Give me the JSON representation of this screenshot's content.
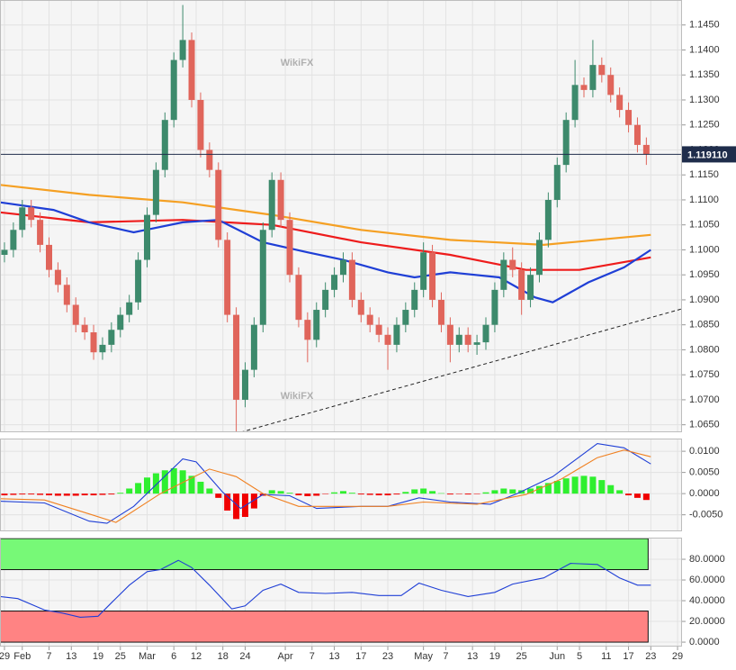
{
  "chart_data": [
    {
      "type": "candlestick",
      "watermark": "WikiFX",
      "xlim": [
        -1,
        152
      ],
      "ylim": [
        1.0635,
        1.15
      ],
      "yticks": [
        {
          "value": 1.065,
          "label": "1.0650"
        },
        {
          "value": 1.07,
          "label": "1.0700"
        },
        {
          "value": 1.075,
          "label": "1.0750"
        },
        {
          "value": 1.08,
          "label": "1.0800"
        },
        {
          "value": 1.085,
          "label": "1.0850"
        },
        {
          "value": 1.09,
          "label": "1.0900"
        },
        {
          "value": 1.095,
          "label": "1.0950"
        },
        {
          "value": 1.1,
          "label": "1.1000"
        },
        {
          "value": 1.105,
          "label": "1.1050"
        },
        {
          "value": 1.11,
          "label": "1.1100"
        },
        {
          "value": 1.115,
          "label": "1.1150"
        },
        {
          "value": 1.12,
          "label": "1.1200"
        },
        {
          "value": 1.125,
          "label": "1.1250"
        },
        {
          "value": 1.13,
          "label": "1.1300"
        },
        {
          "value": 1.135,
          "label": "1.1350"
        },
        {
          "value": 1.14,
          "label": "1.1400"
        },
        {
          "value": 1.145,
          "label": "1.1450"
        }
      ],
      "grid": true,
      "up_color": "#3d8a6c",
      "down_color": "#e0655b",
      "x": [
        0,
        2,
        4,
        6,
        8,
        10,
        12,
        14,
        16,
        18,
        20,
        22,
        24,
        26,
        28,
        30,
        32,
        34,
        36,
        38,
        40,
        42,
        44,
        46,
        48,
        50,
        52,
        54,
        56,
        58,
        60,
        62,
        64,
        66,
        68,
        70,
        72,
        74,
        76,
        78,
        80,
        82,
        84,
        86,
        88,
        90,
        92,
        94,
        96,
        98,
        100,
        102,
        104,
        106,
        108,
        110,
        112,
        114,
        116,
        118,
        120,
        122,
        124,
        126,
        128,
        130,
        132,
        134,
        136,
        138,
        140,
        142,
        144
      ],
      "open": [
        1.099,
        1.1,
        1.104,
        1.1085,
        1.106,
        1.101,
        1.096,
        1.093,
        1.089,
        1.085,
        1.0835,
        1.0795,
        1.081,
        1.084,
        1.087,
        1.0895,
        1.098,
        1.107,
        1.116,
        1.126,
        1.138,
        1.142,
        1.13,
        1.12,
        1.116,
        1.102,
        1.087,
        1.07,
        1.076,
        1.085,
        1.104,
        1.114,
        1.106,
        1.095,
        1.086,
        1.082,
        1.088,
        1.092,
        1.095,
        1.098,
        1.09,
        1.087,
        1.085,
        1.083,
        1.081,
        1.085,
        1.088,
        1.092,
        1.0995,
        1.09,
        1.085,
        1.081,
        1.083,
        1.081,
        1.0815,
        1.085,
        1.092,
        1.098,
        1.096,
        1.09,
        1.095,
        1.102,
        1.11,
        1.117,
        1.126,
        1.133,
        1.132,
        1.137,
        1.135,
        1.131,
        1.128,
        1.125,
        1.121
      ],
      "high": [
        1.1015,
        1.1055,
        1.11,
        1.11,
        1.1075,
        1.1025,
        1.0975,
        1.0945,
        1.0905,
        1.0865,
        1.085,
        1.0825,
        1.0855,
        1.0885,
        1.091,
        1.0995,
        1.1085,
        1.1175,
        1.1275,
        1.1395,
        1.149,
        1.1435,
        1.1315,
        1.1215,
        1.1175,
        1.1035,
        1.0885,
        1.0775,
        1.0865,
        1.1055,
        1.1155,
        1.1155,
        1.1075,
        1.0965,
        1.0875,
        1.0895,
        1.0935,
        1.0965,
        1.0995,
        1.0995,
        1.0915,
        1.0885,
        1.0865,
        1.0845,
        1.0865,
        1.0895,
        1.0935,
        1.1015,
        1.101,
        1.0915,
        1.0865,
        1.0845,
        1.0845,
        1.083,
        1.0865,
        1.0935,
        1.0995,
        1.1005,
        1.0975,
        1.0965,
        1.1035,
        1.1115,
        1.1185,
        1.1275,
        1.138,
        1.1345,
        1.142,
        1.1385,
        1.1365,
        1.1325,
        1.1295,
        1.1265,
        1.1225
      ],
      "low": [
        1.0975,
        1.0985,
        1.1025,
        1.1045,
        1.0995,
        1.0945,
        1.0915,
        1.0875,
        1.0835,
        1.082,
        1.078,
        1.078,
        1.0795,
        1.0825,
        1.0855,
        1.088,
        1.0965,
        1.1055,
        1.1145,
        1.1245,
        1.1365,
        1.1285,
        1.1185,
        1.1145,
        1.1005,
        1.0855,
        1.0635,
        1.0685,
        1.0745,
        1.0835,
        1.1025,
        1.1045,
        1.0935,
        1.0845,
        1.0775,
        1.0805,
        1.0865,
        1.0905,
        1.0935,
        1.0885,
        1.0855,
        1.0835,
        1.0815,
        1.076,
        1.0795,
        1.0835,
        1.0865,
        1.0905,
        1.0885,
        1.0835,
        1.0775,
        1.0795,
        1.0795,
        1.079,
        1.08,
        1.0835,
        1.0905,
        1.0945,
        1.087,
        1.0885,
        1.0935,
        1.1005,
        1.1085,
        1.1155,
        1.1245,
        1.1305,
        1.1305,
        1.1335,
        1.1295,
        1.1265,
        1.1235,
        1.1195,
        1.117
      ],
      "close": [
        1.1,
        1.104,
        1.1085,
        1.106,
        1.101,
        1.096,
        1.093,
        1.089,
        1.085,
        1.0835,
        1.0795,
        1.081,
        1.084,
        1.087,
        1.0895,
        1.098,
        1.107,
        1.116,
        1.126,
        1.138,
        1.142,
        1.13,
        1.12,
        1.116,
        1.102,
        1.087,
        1.07,
        1.076,
        1.085,
        1.104,
        1.114,
        1.106,
        1.095,
        1.086,
        1.082,
        1.088,
        1.092,
        1.095,
        1.098,
        1.09,
        1.087,
        1.085,
        1.083,
        1.081,
        1.085,
        1.088,
        1.092,
        1.0995,
        1.09,
        1.085,
        1.081,
        1.083,
        1.081,
        1.0815,
        1.085,
        1.092,
        1.098,
        1.096,
        1.09,
        1.095,
        1.102,
        1.11,
        1.117,
        1.126,
        1.133,
        1.132,
        1.137,
        1.135,
        1.131,
        1.128,
        1.125,
        1.121,
        1.1191
      ],
      "lines": [
        {
          "color": "#f5a023",
          "x": [
            -1,
            19,
            40,
            60,
            80,
            100,
            121,
            145
          ],
          "values": [
            1.113,
            1.111,
            1.1095,
            1.107,
            1.104,
            1.102,
            1.101,
            1.103
          ]
        },
        {
          "color": "#ee1c1c",
          "x": [
            -1,
            19,
            40,
            60,
            80,
            100,
            117,
            129,
            145
          ],
          "values": [
            1.1075,
            1.1055,
            1.106,
            1.105,
            1.1015,
            1.099,
            1.096,
            1.096,
            1.0985
          ]
        },
        {
          "color": "#1f3fd6",
          "x": [
            -1,
            11,
            19,
            29,
            40,
            48,
            58,
            68,
            76,
            86,
            92,
            100,
            111,
            119,
            123,
            131,
            139,
            145
          ],
          "values": [
            1.1095,
            1.108,
            1.1055,
            1.1035,
            1.1055,
            1.106,
            1.1015,
            1.0995,
            1.098,
            1.0955,
            1.0945,
            1.0955,
            1.0945,
            1.0905,
            1.0895,
            1.0935,
            1.0965,
            1.1
          ]
        }
      ],
      "trendline": {
        "x": [
          53,
          152
        ],
        "y": [
          1.0635,
          1.0882
        ]
      },
      "last_price": {
        "value": 1.11911,
        "label": "1.119110"
      }
    },
    {
      "type": "macd",
      "xlim": [
        -1,
        152
      ],
      "ylim": [
        -0.0089,
        0.013
      ],
      "yticks": [
        {
          "value": -0.005,
          "label": "-0.0050"
        },
        {
          "value": 0,
          "label": "0.0000"
        },
        {
          "value": 0.005,
          "label": "0.0050"
        },
        {
          "value": 0.01,
          "label": "0.0100"
        }
      ],
      "histogram": {
        "pos_color": "#2fef2f",
        "neg_color": "#f00000",
        "x": [
          0,
          2,
          4,
          6,
          8,
          10,
          12,
          14,
          16,
          18,
          20,
          22,
          24,
          26,
          28,
          30,
          32,
          34,
          36,
          38,
          40,
          42,
          44,
          46,
          48,
          50,
          52,
          54,
          56,
          58,
          60,
          62,
          64,
          66,
          68,
          70,
          72,
          74,
          76,
          78,
          80,
          82,
          84,
          86,
          88,
          90,
          92,
          94,
          96,
          98,
          100,
          102,
          104,
          106,
          108,
          110,
          112,
          114,
          116,
          118,
          120,
          122,
          124,
          126,
          128,
          130,
          132,
          134,
          136,
          138,
          140,
          142,
          144
        ],
        "values": [
          -0.0004,
          -0.0003,
          -0.0002,
          -0.0002,
          -0.0003,
          -0.0004,
          -0.0005,
          -0.0005,
          -0.0005,
          -0.0004,
          -0.0004,
          -0.0003,
          -0.0002,
          0.0002,
          0.0012,
          0.0025,
          0.0038,
          0.0048,
          0.0055,
          0.006,
          0.0055,
          0.0042,
          0.0028,
          0.0012,
          -0.001,
          -0.004,
          -0.006,
          -0.0055,
          -0.0035,
          -0.0005,
          0.0008,
          0.0006,
          0.0002,
          -0.0004,
          -0.0006,
          -0.0005,
          -0.0001,
          0.0003,
          0.0006,
          0.0002,
          -0.0002,
          -0.0003,
          -0.0004,
          -0.0004,
          -0.0002,
          0.0004,
          0.001,
          0.0012,
          0.0006,
          0.0001,
          -0.0002,
          -0.0001,
          -0.0002,
          -0.0001,
          0.0003,
          0.0008,
          0.0012,
          0.001,
          0.0008,
          0.0012,
          0.0018,
          0.0025,
          0.003,
          0.0036,
          0.004,
          0.0042,
          0.004,
          0.0032,
          0.002,
          0.0008,
          -0.0004,
          -0.001,
          -0.0015
        ]
      },
      "lines": [
        {
          "color": "#1f3fd6",
          "x": [
            -1,
            9,
            19,
            23,
            29,
            40,
            43,
            49,
            53,
            58,
            64,
            70,
            80,
            86,
            93,
            100,
            109,
            115,
            123,
            133,
            139,
            145
          ],
          "values": [
            -0.0018,
            -0.0022,
            -0.0065,
            -0.007,
            -0.003,
            0.0082,
            0.0075,
            0.0003,
            -0.0035,
            -0.0002,
            -0.0005,
            -0.0035,
            -0.003,
            -0.003,
            -0.001,
            -0.002,
            -0.0025,
            0,
            0.004,
            0.0118,
            0.0108,
            0.007
          ]
        },
        {
          "color": "#f08020",
          "x": [
            -1,
            9,
            19,
            25,
            35,
            46,
            52,
            58,
            66,
            76,
            86,
            94,
            106,
            117,
            125,
            133,
            139,
            145
          ],
          "values": [
            -0.0012,
            -0.0015,
            -0.0048,
            -0.0068,
            0,
            0.0058,
            0.004,
            0,
            -0.003,
            -0.003,
            -0.003,
            -0.002,
            -0.0025,
            -0.0002,
            0.0035,
            0.0085,
            0.0103,
            0.0087
          ]
        }
      ]
    },
    {
      "type": "rsi",
      "xlim": [
        -1,
        152
      ],
      "ylim": [
        -4.3,
        100.9
      ],
      "yticks": [
        {
          "value": 0,
          "label": "0.0000"
        },
        {
          "value": 20,
          "label": "20.0000"
        },
        {
          "value": 40,
          "label": "40.0000"
        },
        {
          "value": 60,
          "label": "60.0000"
        },
        {
          "value": 80,
          "label": "80.0000"
        }
      ],
      "xticks": [
        {
          "value": 0,
          "label": "29"
        },
        {
          "value": 4,
          "label": "Feb"
        },
        {
          "value": 10,
          "label": "7"
        },
        {
          "value": 15,
          "label": "13"
        },
        {
          "value": 21,
          "label": "19"
        },
        {
          "value": 26,
          "label": "25"
        },
        {
          "value": 32,
          "label": "Mar"
        },
        {
          "value": 38,
          "label": "6"
        },
        {
          "value": 43,
          "label": "12"
        },
        {
          "value": 49,
          "label": "18"
        },
        {
          "value": 54,
          "label": "24"
        },
        {
          "value": 63,
          "label": "Apr"
        },
        {
          "value": 69,
          "label": "7"
        },
        {
          "value": 74,
          "label": "13"
        },
        {
          "value": 80,
          "label": "17"
        },
        {
          "value": 86,
          "label": "23"
        },
        {
          "value": 94,
          "label": "May"
        },
        {
          "value": 99,
          "label": "7"
        },
        {
          "value": 105,
          "label": "13"
        },
        {
          "value": 110,
          "label": "19"
        },
        {
          "value": 116,
          "label": "25"
        },
        {
          "value": 124,
          "label": "Jun"
        },
        {
          "value": 129,
          "label": "5"
        },
        {
          "value": 135,
          "label": "11"
        },
        {
          "value": 140,
          "label": "17"
        },
        {
          "value": 145,
          "label": "23"
        },
        {
          "value": 151,
          "label": "29"
        }
      ],
      "bands": [
        {
          "from": 70,
          "to": 100,
          "color": "#77f977"
        },
        {
          "from": 0,
          "to": 30,
          "color": "#ff8383"
        }
      ],
      "lines": [
        {
          "color": "#1f3fd6",
          "x": [
            -1,
            3,
            9,
            13,
            17,
            21,
            24,
            28,
            32,
            35,
            39,
            42,
            46,
            51,
            54,
            58,
            62,
            66,
            72,
            78,
            84,
            89,
            93,
            98,
            104,
            110,
            114,
            121,
            127,
            133,
            138,
            142,
            145
          ],
          "values": [
            44,
            42,
            31,
            28,
            24,
            25,
            38,
            55,
            68,
            70,
            79,
            72,
            55,
            32,
            35,
            50,
            56,
            48,
            47,
            48,
            45,
            45,
            57,
            50,
            44,
            48,
            56,
            62,
            76,
            75,
            62,
            55,
            55
          ]
        }
      ]
    }
  ]
}
